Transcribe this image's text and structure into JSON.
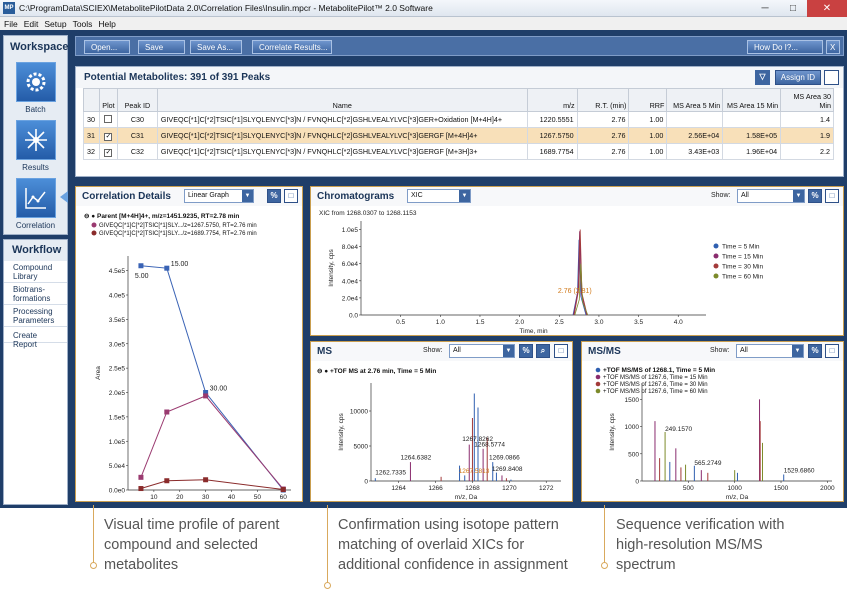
{
  "window": {
    "title": "C:\\ProgramData\\SCIEX\\MetabolitePilotData 2.0\\Correlation Files\\Insulin.mpcr - MetabolitePilot™ 2.0 Software",
    "app_icon": "MP",
    "min": "─",
    "max": "□",
    "close": "✕"
  },
  "menu": [
    "File",
    "Edit",
    "Setup",
    "Tools",
    "Help"
  ],
  "workspace": {
    "title": "Workspace",
    "items": [
      "Batch",
      "Results",
      "Correlation"
    ]
  },
  "workflow": {
    "title": "Workflow",
    "items": [
      "Compound Library",
      "Biotrans-formations",
      "Processing Parameters",
      "Create Report"
    ]
  },
  "toolbar": {
    "open": "Open...",
    "save": "Save",
    "save_as": "Save As...",
    "correlate": "Correlate Results...",
    "howdoi": "How Do I?...",
    "close": "X"
  },
  "metabolites": {
    "title": "Potential Metabolites: 391 of 391 Peaks",
    "assign_label": "Assign ID",
    "filter_icon": "filter-icon",
    "columns": [
      "",
      "Plot",
      "Peak ID",
      "Name",
      "m/z",
      "R.T. (min)",
      "RRF",
      "MS Area 5 Min",
      "MS Area 15 Min",
      "MS Area 30 Min"
    ],
    "rows": [
      {
        "num": "30",
        "plot": "",
        "id": "C30",
        "name": "GIVEQC[*1]C[*2]TSIC[*1]SLYQLENYC[*3]N / FVNQHLC[*2]GSHLVEALYLVC[*3]GER+Oxidation [M+4H]4+",
        "mz": "1220.5551",
        "rt": "2.76",
        "rrf": "1.00",
        "a5": "",
        "a15": "",
        "a30": "1.4"
      },
      {
        "num": "31",
        "plot": "✓",
        "id": "C31",
        "name": "GIVEQC[*1]C[*2]TSIC[*1]SLYQLENYC[*3]N / FVNQHLC[*2]GSHLVEALYLVC[*3]GERGF [M+4H]4+",
        "mz": "1267.5750",
        "rt": "2.76",
        "rrf": "1.00",
        "a5": "2.56E+04",
        "a15": "1.58E+05",
        "a30": "1.9"
      },
      {
        "num": "32",
        "plot": "✓",
        "id": "C32",
        "name": "GIVEQC[*1]C[*2]TSIC[*1]SLYQLENYC[*3]N / FVNQHLC[*2]GSHLVEALYLVC[*3]GERGF [M+3H]3+",
        "mz": "1689.7754",
        "rt": "2.76",
        "rrf": "1.00",
        "a5": "3.43E+03",
        "a15": "1.96E+04",
        "a30": "2.2"
      }
    ]
  },
  "correlation": {
    "title": "Correlation Details",
    "view": "Linear Graph",
    "legend": [
      "Parent [M+4H]4+, m/z=1451.9235, RT=2.78 min",
      "GIVEQC[*1]C[*2]TSIC[*1]SLY.../z=1267.5750, RT=2.76 min",
      "GIVEQC[*1]C[*2]TSIC[*1]SLY.../z=1689.7754, RT=2.76 min"
    ]
  },
  "chromatograms": {
    "title": "Chromatograms",
    "mode": "XIC",
    "show_label": "Show:",
    "show_value": "All",
    "header": "XIC from 1268.0307 to 1268.1153",
    "legend": [
      "Time = 5 Min",
      "Time = 15 Min",
      "Time = 30 Min",
      "Time = 60 Min"
    ]
  },
  "ms": {
    "title": "MS",
    "show_label": "Show:",
    "show_value": "All",
    "legend": "+TOF MS at 2.76 min, Time = 5 Min"
  },
  "msms": {
    "title": "MS/MS",
    "show_label": "Show:",
    "show_value": "All",
    "legend": [
      "+TOF MS/MS of 1268.1, Time = 5 Min",
      "+TOF MS/MS of 1267.6, Time = 15 Min",
      "+TOF MS/MS of 1267.6, Time = 30 Min",
      "+TOF MS/MS of 1267.6, Time = 60 Min"
    ]
  },
  "captions": [
    "Visual time profile of parent compound and selected metabolites",
    "Confirmation using isotope pattern matching of overlaid XICs for additional confidence in assignment",
    "Sequence verification with high-resolution MS/MS spectrum"
  ],
  "colors": {
    "accent": "#3d65a0",
    "highlight_row": "#f8e0b9",
    "panel_border": "#c99e4f",
    "series_parent": "#3a63b5",
    "series_1267": "#9a3a70",
    "series_1689": "#8a2b2b",
    "t5": "#2f5fb0",
    "t15": "#8a2c6e",
    "t30": "#a33a3a",
    "t60": "#7c8a2a"
  },
  "chart_data": [
    {
      "type": "line",
      "title": "Correlation Details",
      "xlabel": "Time, Min",
      "ylabel": "Area",
      "x": [
        5,
        15,
        30,
        60
      ],
      "xlim": [
        0,
        63
      ],
      "ylim": [
        0,
        480000.0
      ],
      "xticks": [
        10,
        20,
        30,
        40,
        50,
        60
      ],
      "yticks": [
        0,
        50000.0,
        100000.0,
        150000.0,
        200000.0,
        250000.0,
        300000.0,
        350000.0,
        400000.0,
        450000.0
      ],
      "ytick_labels": [
        "0.0e0",
        "5.0e4",
        "1.0e5",
        "1.5e5",
        "2.0e5",
        "2.5e5",
        "3.0e5",
        "3.5e5",
        "4.0e5",
        "4.5e5"
      ],
      "series": [
        {
          "name": "Parent",
          "values": [
            460000,
            455000,
            200000,
            0
          ],
          "labels": [
            "5.00",
            "15.00",
            "30.00",
            ""
          ]
        },
        {
          "name": "1267.5750",
          "values": [
            26000,
            160000,
            193000,
            2000
          ]
        },
        {
          "name": "1689.7754",
          "values": [
            3000,
            19000,
            21000,
            1000
          ]
        }
      ]
    },
    {
      "type": "line",
      "title": "XIC from 1268.0307 to 1268.1153",
      "xlabel": "Time, min",
      "ylabel": "Intensity, cps",
      "xlim": [
        0,
        4.35
      ],
      "ylim": [
        0,
        110000.0
      ],
      "xticks": [
        0.5,
        1.0,
        1.5,
        2.0,
        2.5,
        3.0,
        3.5,
        4.0
      ],
      "xtick_labels": [
        "0.5",
        "1.0",
        "1.5",
        "2.0",
        "2.5",
        "3.0",
        "3.5",
        "4.0"
      ],
      "yticks": [
        0,
        20000.0,
        40000.0,
        60000.0,
        80000.0,
        100000.0
      ],
      "ytick_labels": [
        "0.0",
        "2.0e4",
        "4.0e4",
        "6.0e4",
        "8.0e4",
        "1.0e5"
      ],
      "peak_rt": 2.76,
      "peak_label": "2.76 (2.81)",
      "series": [
        {
          "name": "Time = 5 Min",
          "peak": 88000
        },
        {
          "name": "Time = 15 Min",
          "peak": 98000
        },
        {
          "name": "Time = 30 Min",
          "peak": 100000
        },
        {
          "name": "Time = 60 Min",
          "peak": 60000
        }
      ]
    },
    {
      "type": "bar",
      "title": "+TOF MS at 2.76 min, Time = 5 Min",
      "xlabel": "m/z, Da",
      "ylabel": "Intensity, cps",
      "xlim": [
        1262.5,
        1272.8
      ],
      "ylim": [
        0,
        14000
      ],
      "xticks": [
        1264,
        1266,
        1268,
        1270,
        1272
      ],
      "xtick_labels": [
        "1264",
        "1266",
        "1268",
        "1270",
        "1272"
      ],
      "yticks": [
        0,
        5000,
        10000
      ],
      "ytick_labels": [
        "0",
        "5000",
        "10000"
      ],
      "peaks_mz": [
        1262.7335,
        1264.6382,
        1266.3,
        1267.3,
        1267.5813,
        1267.8262,
        1268.0,
        1268.1,
        1268.3,
        1268.5774,
        1268.8,
        1269.1,
        1269.3,
        1269.6,
        1269.8408,
        1270.0866
      ],
      "peaks_int": [
        400,
        2700,
        600,
        2200,
        800,
        5200,
        9000,
        12500,
        10500,
        4600,
        6200,
        2700,
        1200,
        800,
        400,
        200
      ],
      "labels": [
        {
          "text": "1262.7335",
          "mz": 1262.73,
          "int": 800
        },
        {
          "text": "1264.6382",
          "mz": 1264.1,
          "int": 2900
        },
        {
          "text": "1267.8262",
          "mz": 1267.45,
          "int": 5600
        },
        {
          "text": "1267.5813",
          "mz": 1267.25,
          "int": 1000
        },
        {
          "text": "1268.5774",
          "mz": 1268.1,
          "int": 4800
        },
        {
          "text": "1269.0866",
          "mz": 1268.9,
          "int": 2900
        },
        {
          "text": "1269.8408",
          "mz": 1269.05,
          "int": 1300
        }
      ]
    },
    {
      "type": "bar",
      "title": "+TOF MS/MS of 1268.1, Time = 5 Min",
      "xlabel": "m/z, Da",
      "ylabel": "Intensity, cps",
      "xlim": [
        0,
        2050
      ],
      "ylim": [
        0,
        1800
      ],
      "xticks": [
        500,
        1000,
        1500,
        2000
      ],
      "xtick_labels": [
        "500",
        "1000",
        "1500",
        "2000"
      ],
      "yticks": [
        0,
        500,
        1000,
        1500
      ],
      "ytick_labels": [
        "0",
        "500",
        "1000",
        "1500"
      ],
      "peaks_mz": [
        140,
        190,
        249,
        300,
        365,
        420,
        470,
        565,
        640,
        710,
        1000,
        1030,
        1268,
        1275,
        1300,
        1529
      ],
      "peaks_int": [
        1100,
        420,
        900,
        350,
        600,
        250,
        300,
        280,
        200,
        150,
        200,
        150,
        1500,
        1100,
        700,
        120
      ],
      "labels": [
        {
          "text": "249.1570",
          "mz": 249,
          "int": 900
        },
        {
          "text": "565.2749",
          "mz": 565,
          "int": 280
        },
        {
          "text": "1529.6860",
          "mz": 1529,
          "int": 140
        }
      ]
    }
  ]
}
